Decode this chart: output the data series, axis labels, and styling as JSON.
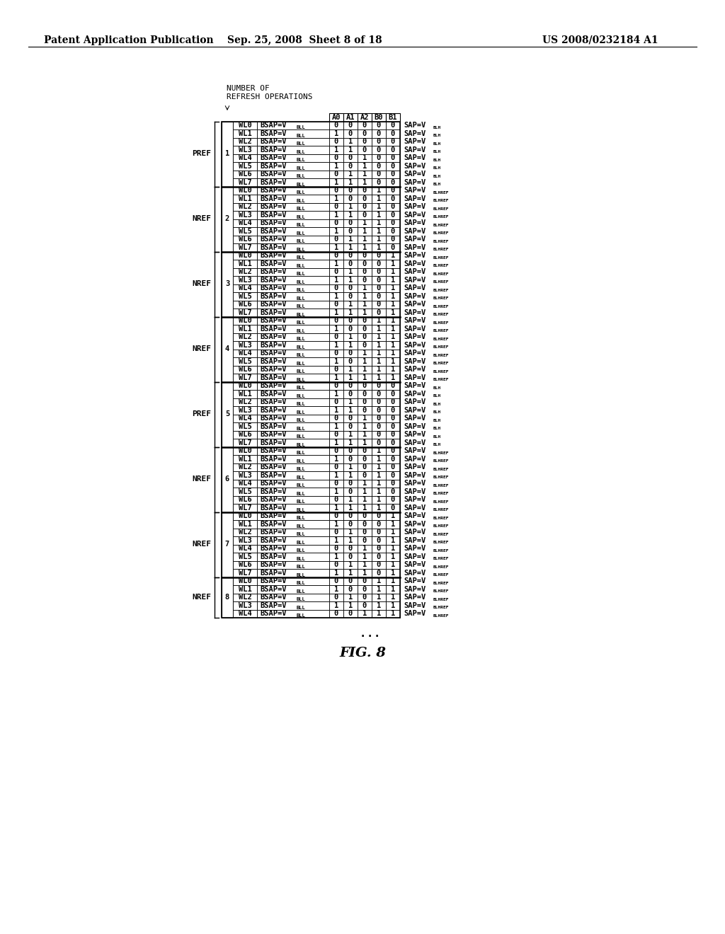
{
  "title_left": "Patent Application Publication",
  "title_center": "Sep. 25, 2008  Sheet 8 of 18",
  "title_right": "US 2008/0232184 A1",
  "col_headers": [
    "A0",
    "A1",
    "A2",
    "B0",
    "B1"
  ],
  "groups": [
    {
      "num": "1",
      "label": "PREF",
      "rows": [
        {
          "wl": "WL0",
          "vals": [
            0,
            0,
            0,
            0,
            0
          ],
          "sap_sub": "BLH"
        },
        {
          "wl": "WL1",
          "vals": [
            1,
            0,
            0,
            0,
            0
          ],
          "sap_sub": "BLH"
        },
        {
          "wl": "WL2",
          "vals": [
            0,
            1,
            0,
            0,
            0
          ],
          "sap_sub": "BLH"
        },
        {
          "wl": "WL3",
          "vals": [
            1,
            1,
            0,
            0,
            0
          ],
          "sap_sub": "BLH"
        },
        {
          "wl": "WL4",
          "vals": [
            0,
            0,
            1,
            0,
            0
          ],
          "sap_sub": "BLH"
        },
        {
          "wl": "WL5",
          "vals": [
            1,
            0,
            1,
            0,
            0
          ],
          "sap_sub": "BLH"
        },
        {
          "wl": "WL6",
          "vals": [
            0,
            1,
            1,
            0,
            0
          ],
          "sap_sub": "BLH"
        },
        {
          "wl": "WL7",
          "vals": [
            1,
            1,
            1,
            0,
            0
          ],
          "sap_sub": "BLH"
        }
      ]
    },
    {
      "num": "2",
      "label": "NREF",
      "rows": [
        {
          "wl": "WL0",
          "vals": [
            0,
            0,
            0,
            1,
            0
          ],
          "sap_sub": "BLHREF"
        },
        {
          "wl": "WL1",
          "vals": [
            1,
            0,
            0,
            1,
            0
          ],
          "sap_sub": "BLHREF"
        },
        {
          "wl": "WL2",
          "vals": [
            0,
            1,
            0,
            1,
            0
          ],
          "sap_sub": "BLHREF"
        },
        {
          "wl": "WL3",
          "vals": [
            1,
            1,
            0,
            1,
            0
          ],
          "sap_sub": "BLHREF"
        },
        {
          "wl": "WL4",
          "vals": [
            0,
            0,
            1,
            1,
            0
          ],
          "sap_sub": "BLHREF"
        },
        {
          "wl": "WL5",
          "vals": [
            1,
            0,
            1,
            1,
            0
          ],
          "sap_sub": "BLHREF"
        },
        {
          "wl": "WL6",
          "vals": [
            0,
            1,
            1,
            1,
            0
          ],
          "sap_sub": "BLHREF"
        },
        {
          "wl": "WL7",
          "vals": [
            1,
            1,
            1,
            1,
            0
          ],
          "sap_sub": "BLHREF"
        }
      ]
    },
    {
      "num": "3",
      "label": "NREF",
      "rows": [
        {
          "wl": "WL0",
          "vals": [
            0,
            0,
            0,
            0,
            1
          ],
          "sap_sub": "BLHREF"
        },
        {
          "wl": "WL1",
          "vals": [
            1,
            0,
            0,
            0,
            1
          ],
          "sap_sub": "BLHREF"
        },
        {
          "wl": "WL2",
          "vals": [
            0,
            1,
            0,
            0,
            1
          ],
          "sap_sub": "BLHREF"
        },
        {
          "wl": "WL3",
          "vals": [
            1,
            1,
            0,
            0,
            1
          ],
          "sap_sub": "BLHREF"
        },
        {
          "wl": "WL4",
          "vals": [
            0,
            0,
            1,
            0,
            1
          ],
          "sap_sub": "BLHREF"
        },
        {
          "wl": "WL5",
          "vals": [
            1,
            0,
            1,
            0,
            1
          ],
          "sap_sub": "BLHREF"
        },
        {
          "wl": "WL6",
          "vals": [
            0,
            1,
            1,
            0,
            1
          ],
          "sap_sub": "BLHREF"
        },
        {
          "wl": "WL7",
          "vals": [
            1,
            1,
            1,
            0,
            1
          ],
          "sap_sub": "BLHREF"
        }
      ]
    },
    {
      "num": "4",
      "label": "NREF",
      "rows": [
        {
          "wl": "WL0",
          "vals": [
            0,
            0,
            0,
            1,
            1
          ],
          "sap_sub": "BLHREF"
        },
        {
          "wl": "WL1",
          "vals": [
            1,
            0,
            0,
            1,
            1
          ],
          "sap_sub": "BLHREF"
        },
        {
          "wl": "WL2",
          "vals": [
            0,
            1,
            0,
            1,
            1
          ],
          "sap_sub": "BLHREF"
        },
        {
          "wl": "WL3",
          "vals": [
            1,
            1,
            0,
            1,
            1
          ],
          "sap_sub": "BLHREF"
        },
        {
          "wl": "WL4",
          "vals": [
            0,
            0,
            1,
            1,
            1
          ],
          "sap_sub": "BLHREF"
        },
        {
          "wl": "WL5",
          "vals": [
            1,
            0,
            1,
            1,
            1
          ],
          "sap_sub": "BLHREF"
        },
        {
          "wl": "WL6",
          "vals": [
            0,
            1,
            1,
            1,
            1
          ],
          "sap_sub": "BLHREF"
        },
        {
          "wl": "WL7",
          "vals": [
            1,
            1,
            1,
            1,
            1
          ],
          "sap_sub": "BLHREF"
        }
      ]
    },
    {
      "num": "5",
      "label": "PREF",
      "rows": [
        {
          "wl": "WL0",
          "vals": [
            0,
            0,
            0,
            0,
            0
          ],
          "sap_sub": "BLH"
        },
        {
          "wl": "WL1",
          "vals": [
            1,
            0,
            0,
            0,
            0
          ],
          "sap_sub": "BLH"
        },
        {
          "wl": "WL2",
          "vals": [
            0,
            1,
            0,
            0,
            0
          ],
          "sap_sub": "BLH"
        },
        {
          "wl": "WL3",
          "vals": [
            1,
            1,
            0,
            0,
            0
          ],
          "sap_sub": "BLH"
        },
        {
          "wl": "WL4",
          "vals": [
            0,
            0,
            1,
            0,
            0
          ],
          "sap_sub": "BLH"
        },
        {
          "wl": "WL5",
          "vals": [
            1,
            0,
            1,
            0,
            0
          ],
          "sap_sub": "BLH"
        },
        {
          "wl": "WL6",
          "vals": [
            0,
            1,
            1,
            0,
            0
          ],
          "sap_sub": "BLH"
        },
        {
          "wl": "WL7",
          "vals": [
            1,
            1,
            1,
            0,
            0
          ],
          "sap_sub": "BLH"
        }
      ]
    },
    {
      "num": "6",
      "label": "NREF",
      "rows": [
        {
          "wl": "WL0",
          "vals": [
            0,
            0,
            0,
            1,
            0
          ],
          "sap_sub": "BLHREF"
        },
        {
          "wl": "WL1",
          "vals": [
            1,
            0,
            0,
            1,
            0
          ],
          "sap_sub": "BLHREF"
        },
        {
          "wl": "WL2",
          "vals": [
            0,
            1,
            0,
            1,
            0
          ],
          "sap_sub": "BLHREF"
        },
        {
          "wl": "WL3",
          "vals": [
            1,
            1,
            0,
            1,
            0
          ],
          "sap_sub": "BLHREF"
        },
        {
          "wl": "WL4",
          "vals": [
            0,
            0,
            1,
            1,
            0
          ],
          "sap_sub": "BLHREF"
        },
        {
          "wl": "WL5",
          "vals": [
            1,
            0,
            1,
            1,
            0
          ],
          "sap_sub": "BLHREF"
        },
        {
          "wl": "WL6",
          "vals": [
            0,
            1,
            1,
            1,
            0
          ],
          "sap_sub": "BLHREF"
        },
        {
          "wl": "WL7",
          "vals": [
            1,
            1,
            1,
            1,
            0
          ],
          "sap_sub": "BLHREF"
        }
      ]
    },
    {
      "num": "7",
      "label": "NREF",
      "rows": [
        {
          "wl": "WL0",
          "vals": [
            0,
            0,
            0,
            0,
            1
          ],
          "sap_sub": "BLHREF"
        },
        {
          "wl": "WL1",
          "vals": [
            1,
            0,
            0,
            0,
            1
          ],
          "sap_sub": "BLHREF"
        },
        {
          "wl": "WL2",
          "vals": [
            0,
            1,
            0,
            0,
            1
          ],
          "sap_sub": "BLHREF"
        },
        {
          "wl": "WL3",
          "vals": [
            1,
            1,
            0,
            0,
            1
          ],
          "sap_sub": "BLHREF"
        },
        {
          "wl": "WL4",
          "vals": [
            0,
            0,
            1,
            0,
            1
          ],
          "sap_sub": "BLHREF"
        },
        {
          "wl": "WL5",
          "vals": [
            1,
            0,
            1,
            0,
            1
          ],
          "sap_sub": "BLHREF"
        },
        {
          "wl": "WL6",
          "vals": [
            0,
            1,
            1,
            0,
            1
          ],
          "sap_sub": "BLHREF"
        },
        {
          "wl": "WL7",
          "vals": [
            1,
            1,
            1,
            0,
            1
          ],
          "sap_sub": "BLHREF"
        }
      ]
    },
    {
      "num": "8",
      "label": "NREF",
      "rows": [
        {
          "wl": "WL0",
          "vals": [
            0,
            0,
            0,
            1,
            1
          ],
          "sap_sub": "BLHREF"
        },
        {
          "wl": "WL1",
          "vals": [
            1,
            0,
            0,
            1,
            1
          ],
          "sap_sub": "BLHREF"
        },
        {
          "wl": "WL2",
          "vals": [
            0,
            1,
            0,
            1,
            1
          ],
          "sap_sub": "BLHREF"
        },
        {
          "wl": "WL3",
          "vals": [
            1,
            1,
            0,
            1,
            1
          ],
          "sap_sub": "BLHREF"
        },
        {
          "wl": "WL4",
          "vals": [
            0,
            0,
            1,
            1,
            1
          ],
          "sap_sub": "BLHREF"
        }
      ]
    }
  ]
}
